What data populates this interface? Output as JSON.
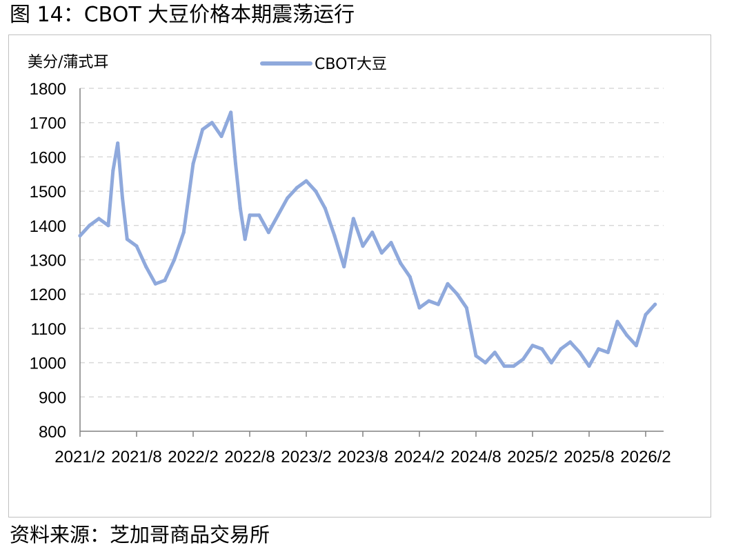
{
  "figure": {
    "title": "图 14：CBOT 大豆价格本期震荡运行",
    "source": "资料来源：芝加哥商品交易所"
  },
  "chart_data": {
    "type": "line",
    "unit_label": "美分/蒲式耳",
    "ylim": [
      800,
      1800
    ],
    "yticks": [
      1800,
      1700,
      1600,
      1500,
      1400,
      1300,
      1200,
      1100,
      1000,
      900,
      800
    ],
    "xticks": [
      "2021/2",
      "2021/8",
      "2022/2",
      "2022/8",
      "2023/2",
      "2023/8",
      "2024/2",
      "2024/8",
      "2025/2",
      "2025/8",
      "2026/2"
    ],
    "grid": "horizontal dashed",
    "legend_position": "top-center",
    "colors": {
      "series": "#8fa9dc",
      "grid": "#d9d9d9",
      "axis": "#808080",
      "frame": "#bfbfbf"
    },
    "series": [
      {
        "name": "CBOT大豆",
        "x": [
          "2021/2",
          "2021/3",
          "2021/4",
          "2021/5",
          "2021/5",
          "2021/6",
          "2021/6",
          "2021/7",
          "2021/8",
          "2021/9",
          "2021/10",
          "2021/11",
          "2021/12",
          "2022/1",
          "2022/2",
          "2022/3",
          "2022/4",
          "2022/5",
          "2022/6",
          "2022/6",
          "2022/7",
          "2022/7",
          "2022/8",
          "2022/9",
          "2022/10",
          "2022/11",
          "2022/12",
          "2023/1",
          "2023/2",
          "2023/3",
          "2023/4",
          "2023/5",
          "2023/6",
          "2023/6",
          "2023/7",
          "2023/8",
          "2023/9",
          "2023/10",
          "2023/11",
          "2023/12",
          "2024/1",
          "2024/2",
          "2024/3",
          "2024/4",
          "2024/5",
          "2024/6",
          "2024/7",
          "2024/8",
          "2024/9",
          "2024/10",
          "2024/11",
          "2024/12",
          "2025/1",
          "2025/2",
          "2025/3",
          "2025/4",
          "2025/5",
          "2025/6",
          "2025/7",
          "2025/8",
          "2025/9",
          "2025/10",
          "2025/11",
          "2025/12",
          "2026/1",
          "2026/2",
          "2026/3"
        ],
        "values": [
          1370,
          1400,
          1420,
          1400,
          1560,
          1640,
          1480,
          1360,
          1340,
          1280,
          1230,
          1240,
          1300,
          1380,
          1580,
          1680,
          1700,
          1660,
          1730,
          1580,
          1450,
          1360,
          1430,
          1430,
          1380,
          1430,
          1480,
          1510,
          1530,
          1500,
          1450,
          1370,
          1280,
          1350,
          1420,
          1340,
          1380,
          1320,
          1350,
          1290,
          1250,
          1160,
          1180,
          1170,
          1230,
          1200,
          1160,
          1020,
          1000,
          1030,
          990,
          990,
          1010,
          1050,
          1040,
          1000,
          1040,
          1060,
          1030,
          990,
          1040,
          1030,
          1120,
          1080,
          1050,
          1140,
          1170
        ]
      }
    ]
  }
}
